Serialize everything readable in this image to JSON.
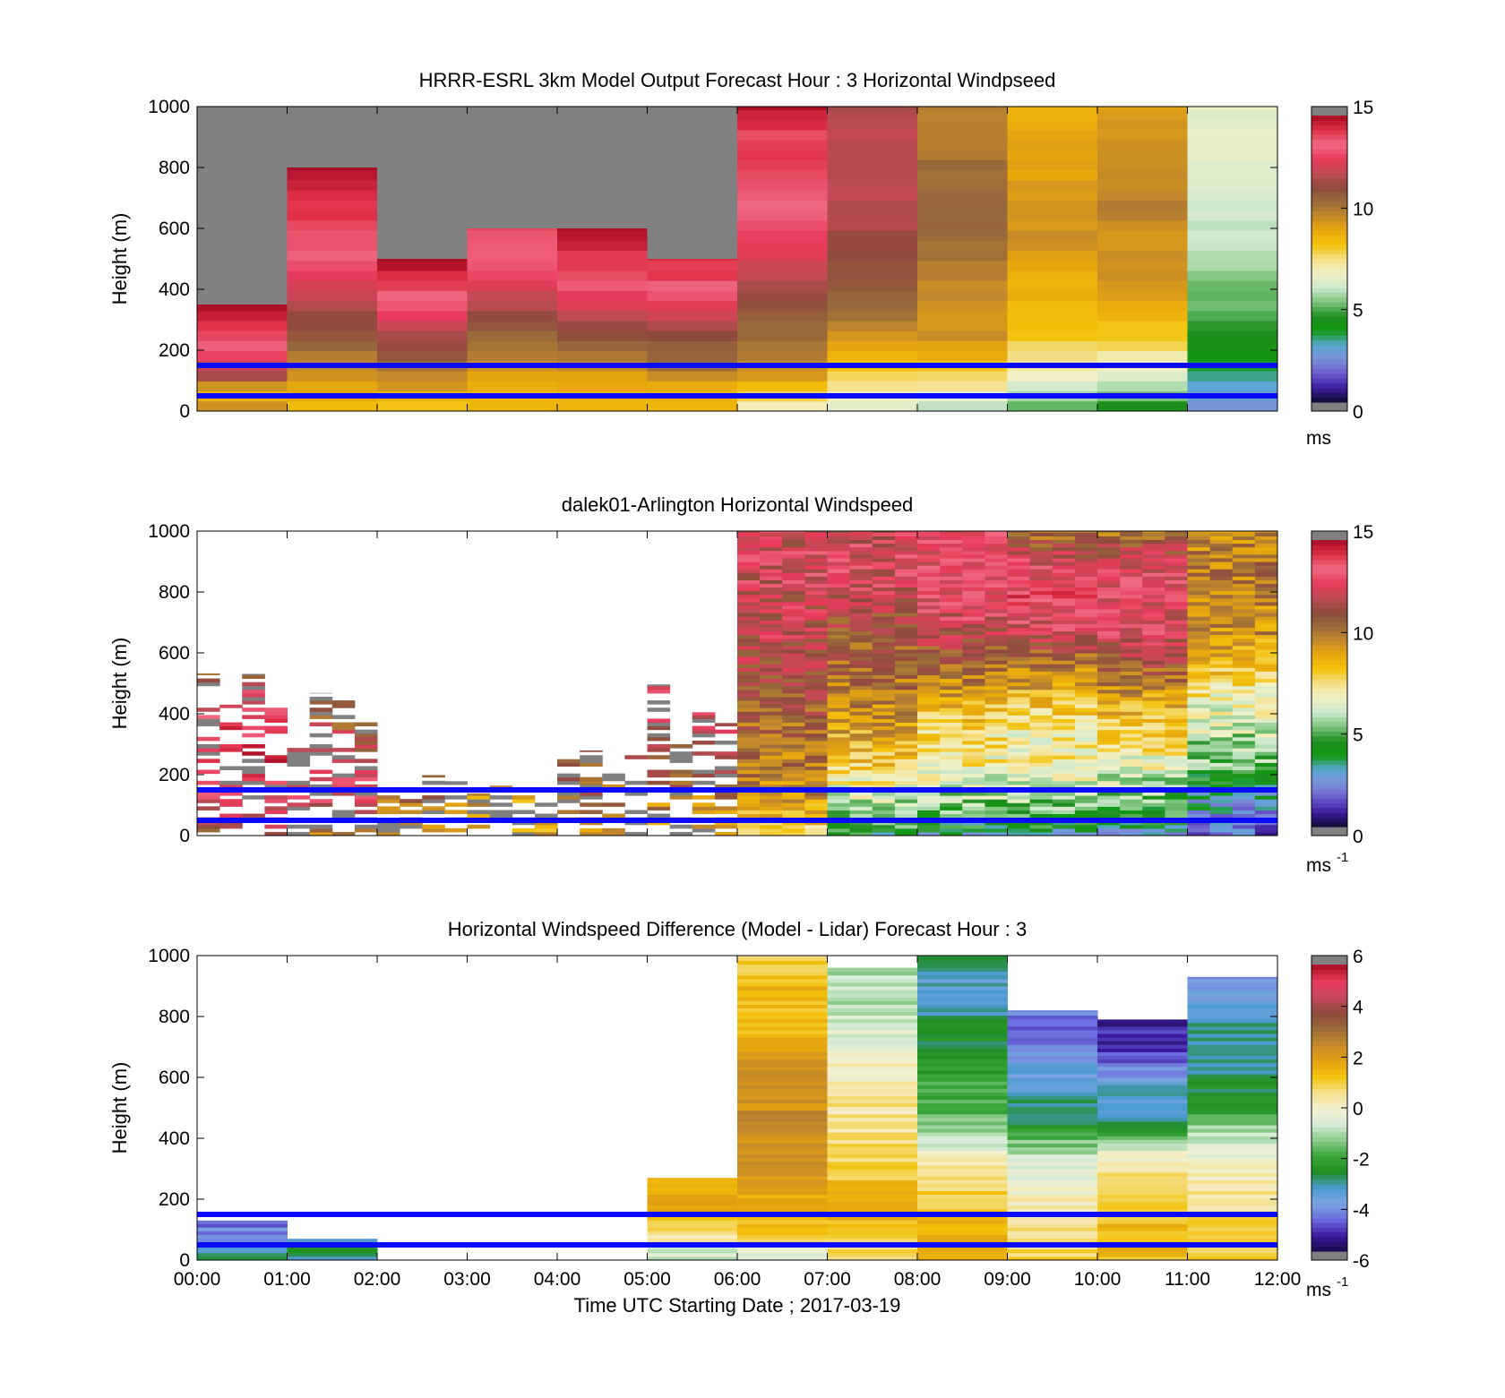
{
  "colors": {
    "blue_line": "#0a0aff",
    "no_data": "#808080",
    "speed_stops": [
      "#0c0c30",
      "#3c1a9e",
      "#6a5acd",
      "#7b8fd6",
      "#5aa8d6",
      "#0f9a0f",
      "#1e8e1e",
      "#7cc47c",
      "#cde9cd",
      "#f2f1c8",
      "#f5e08a",
      "#f3c20a",
      "#e8a80c",
      "#c48a2a",
      "#9a6a3a",
      "#8e4a3e",
      "#c04a55",
      "#e83a5a",
      "#f06a82",
      "#e0304a",
      "#a60c22"
    ],
    "diff_stops": [
      "#1a0a4a",
      "#3c1a9e",
      "#6a6ade",
      "#7ba5e0",
      "#4a9ad0",
      "#1e8e1e",
      "#3aa53a",
      "#8ccc8c",
      "#d8ecd8",
      "#f5f0d0",
      "#f5e08a",
      "#f3c20a",
      "#e2a012",
      "#c48a2a",
      "#9a6a3a",
      "#8e4a3e",
      "#c8485c",
      "#e83a5a",
      "#a60c22"
    ]
  },
  "chart_data": [
    {
      "id": "model",
      "type": "heatmap",
      "title": "HRRR-ESRL 3km Model Output   Forecast Hour : 3 Horizontal Windpseed",
      "xlabel": "",
      "ylabel": "Height (m)",
      "ylim": [
        0,
        1000
      ],
      "y_ticks": [
        "0",
        "200",
        "400",
        "600",
        "800",
        "1000"
      ],
      "x_ticks": [
        "00:00",
        "01:00",
        "02:00",
        "03:00",
        "04:00",
        "05:00",
        "06:00",
        "07:00",
        "08:00",
        "09:00",
        "10:00",
        "11:00",
        "12:00"
      ],
      "show_x_tick_labels": false,
      "height_lines_m": [
        150,
        50
      ],
      "colorbar": {
        "min": 0,
        "max": 15,
        "ticks": [
          "0",
          "5",
          "10",
          "15"
        ],
        "unit": "ms",
        "unit_sup": ""
      },
      "data_top_m": [
        350,
        800,
        500,
        600,
        600,
        500,
        1000,
        1000,
        1000,
        1000,
        1000,
        1000
      ],
      "hourly_profiles_ms": [
        [
          9.5,
          8.5,
          11.5,
          12.5,
          13.5,
          14.0,
          14.5,
          15.0
        ],
        [
          8.5,
          9.5,
          10.5,
          11.5,
          12.5,
          13.5,
          14.0,
          14.5,
          15.0
        ],
        [
          8.0,
          9.5,
          10.5,
          11.5,
          12.5,
          13.5,
          14.5,
          15.0
        ],
        [
          8.5,
          9.0,
          10.0,
          11.0,
          12.0,
          13.0,
          13.5,
          14.0
        ],
        [
          8.5,
          9.0,
          10.0,
          11.0,
          12.0,
          13.0,
          14.0,
          14.5,
          15.0
        ],
        [
          8.5,
          9.0,
          10.5,
          11.0,
          12.0,
          13.0,
          14.0,
          14.5
        ],
        [
          7.0,
          9.5,
          10.5,
          11.0,
          12.0,
          13.0,
          13.5,
          14.0,
          14.0,
          15.0
        ],
        [
          6.5,
          8.0,
          9.5,
          10.5,
          11.0,
          11.5,
          12.0,
          12.0,
          12.0,
          11.5
        ],
        [
          6.0,
          8.0,
          9.5,
          9.5,
          10.0,
          10.5,
          10.5,
          10.5,
          10.0,
          10.0
        ],
        [
          5.0,
          7.0,
          8.0,
          8.5,
          9.0,
          9.5,
          9.5,
          9.0,
          9.0,
          8.5
        ],
        [
          4.5,
          6.5,
          8.0,
          9.0,
          9.5,
          9.5,
          10.0,
          9.5,
          9.5,
          9.0
        ],
        [
          2.5,
          3.5,
          4.5,
          5.0,
          5.5,
          6.0,
          6.0,
          6.5,
          6.5,
          6.5
        ]
      ]
    },
    {
      "id": "lidar",
      "type": "heatmap",
      "title": "dalek01-Arlington  Horizontal Windspeed",
      "xlabel": "",
      "ylabel": "Height (m)",
      "ylim": [
        0,
        1000
      ],
      "y_ticks": [
        "0",
        "200",
        "400",
        "600",
        "800",
        "1000"
      ],
      "x_ticks": [
        "00:00",
        "01:00",
        "02:00",
        "03:00",
        "04:00",
        "05:00",
        "06:00",
        "07:00",
        "08:00",
        "09:00",
        "10:00",
        "11:00",
        "12:00"
      ],
      "show_x_tick_labels": false,
      "height_lines_m": [
        150,
        50
      ],
      "colorbar": {
        "min": 0,
        "max": 15,
        "ticks": [
          "0",
          "5",
          "10",
          "15"
        ],
        "unit": "ms",
        "unit_sup": "-1"
      },
      "data_top_m": [
        580,
        500,
        210,
        180,
        300,
        520,
        1000,
        1000,
        1000,
        1000,
        1000,
        1000
      ],
      "hourly_profiles_ms": [
        [
          11.0,
          13.0,
          14.0,
          13.5,
          12.0,
          10.0
        ],
        [
          10.0,
          13.0,
          12.0,
          11.0,
          10.0
        ],
        [
          9.5,
          10.0,
          10.5
        ],
        [
          9.0,
          9.5
        ],
        [
          9.0,
          10.5,
          11.0
        ],
        [
          9.0,
          10.0,
          11.0,
          12.0,
          13.0,
          13.5
        ],
        [
          7.5,
          9.5,
          10.0,
          10.5,
          11.0,
          11.5,
          12.0,
          12.0,
          12.5,
          12.0
        ],
        [
          4.0,
          6.0,
          8.0,
          9.0,
          10.0,
          10.5,
          11.0,
          12.0,
          12.5,
          12.0
        ],
        [
          3.5,
          5.5,
          7.0,
          7.5,
          9.0,
          10.5,
          12.0,
          13.0,
          13.0,
          12.5
        ],
        [
          3.5,
          5.5,
          7.0,
          7.0,
          8.5,
          10.0,
          12.5,
          13.5,
          12.5,
          10.0
        ],
        [
          3.0,
          5.0,
          6.5,
          8.0,
          9.0,
          11.0,
          12.5,
          13.0,
          12.5,
          10.0
        ],
        [
          1.5,
          3.0,
          5.0,
          6.0,
          7.0,
          8.5,
          9.5,
          10.0,
          10.0,
          9.5
        ]
      ]
    },
    {
      "id": "difference",
      "type": "heatmap",
      "title": "Horizontal Windspeed Difference (Model - Lidar) Forecast Hour : 3",
      "xlabel": "Time UTC  Starting Date ; 2017-03-19",
      "ylabel": "Height (m)",
      "ylim": [
        0,
        1000
      ],
      "y_ticks": [
        "0",
        "200",
        "400",
        "600",
        "800",
        "1000"
      ],
      "x_ticks": [
        "00:00",
        "01:00",
        "02:00",
        "03:00",
        "04:00",
        "05:00",
        "06:00",
        "07:00",
        "08:00",
        "09:00",
        "10:00",
        "11:00",
        "12:00"
      ],
      "show_x_tick_labels": true,
      "height_lines_m": [
        150,
        50
      ],
      "colorbar": {
        "min": -6,
        "max": 6,
        "ticks": [
          "-6",
          "-4",
          "-2",
          "0",
          "2",
          "4",
          "6"
        ],
        "unit": "ms",
        "unit_sup": "-1"
      },
      "data_top_m": [
        130,
        70,
        0,
        0,
        0,
        270,
        1000,
        960,
        1000,
        820,
        790,
        930
      ],
      "hourly_profiles_ms": [
        [
          -3.0,
          -5.0
        ],
        [
          -3.0
        ],
        [],
        [],
        [],
        [
          -1.0,
          1.5,
          2.0
        ],
        [
          -0.5,
          1.5,
          2.0,
          2.5,
          2.5,
          2.5,
          2.0,
          1.5,
          1.5,
          1.0
        ],
        [
          0.5,
          1.5,
          1.5,
          1.0,
          0.5,
          0.5,
          0.0,
          -0.5,
          -1.0,
          -1.0
        ],
        [
          2.0,
          1.5,
          1.0,
          0.0,
          -1.5,
          -2.0,
          -2.5,
          -3.0,
          -3.5,
          -3.0
        ],
        [
          1.0,
          0.5,
          0.0,
          -1.0,
          -3.0,
          -3.5,
          -4.5,
          -4.5
        ],
        [
          1.5,
          1.5,
          1.0,
          0.0,
          -3.0,
          -3.5,
          -5.0,
          -5.5
        ],
        [
          1.0,
          1.0,
          0.5,
          0.0,
          -1.0,
          -2.5,
          -3.0,
          -3.0,
          -3.5,
          -4.5
        ]
      ]
    }
  ]
}
